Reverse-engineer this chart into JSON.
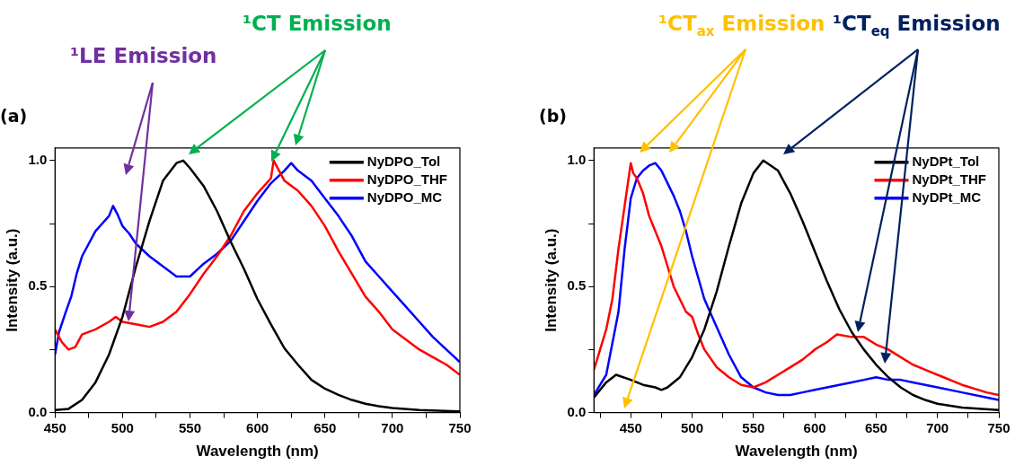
{
  "chart_data": [
    {
      "type": "line",
      "title": "(a)",
      "xlabel": "Wavelength (nm)",
      "ylabel": "Intensity (a.u.)",
      "legend": "top right",
      "marker": "none",
      "line_style": "solid",
      "annotations": [
        "¹LE Emission",
        "¹CT Emission"
      ],
      "xlim": [
        450,
        750
      ],
      "xticks": [
        450,
        {
          "value": 475,
          "label": null
        },
        500,
        {
          "value": 525,
          "label": null
        },
        550,
        {
          "value": 575,
          "label": null
        },
        600,
        {
          "value": 625,
          "label": null
        },
        650,
        {
          "value": 675,
          "label": null
        },
        700,
        {
          "value": 725,
          "label": null
        },
        750
      ],
      "ylim": [
        0,
        1.05
      ],
      "yticks": [
        {
          "value": 0,
          "label": "0.0"
        },
        {
          "value": 0.25,
          "label": null
        },
        {
          "value": 0.5,
          "label": "0.5"
        },
        {
          "value": 0.75,
          "label": null
        },
        {
          "value": 1,
          "label": "1.0"
        }
      ],
      "series": [
        {
          "name": "NyDPO_Tol",
          "color": "#000000",
          "x": [
            450,
            460,
            470,
            480,
            490,
            500,
            510,
            520,
            530,
            540,
            545,
            550,
            560,
            570,
            580,
            590,
            600,
            610,
            620,
            630,
            640,
            650,
            660,
            670,
            680,
            690,
            700,
            720,
            750
          ],
          "values": [
            0.01,
            0.015,
            0.05,
            0.12,
            0.23,
            0.38,
            0.58,
            0.76,
            0.92,
            0.99,
            1.0,
            0.97,
            0.9,
            0.8,
            0.68,
            0.57,
            0.45,
            0.35,
            0.255,
            0.19,
            0.13,
            0.095,
            0.07,
            0.05,
            0.035,
            0.025,
            0.018,
            0.01,
            0.005
          ]
        },
        {
          "name": "NyDPO_THF",
          "color": "#ff0000",
          "x": [
            450,
            455,
            460,
            465,
            470,
            480,
            490,
            495,
            500,
            510,
            520,
            530,
            540,
            550,
            560,
            570,
            580,
            590,
            600,
            610,
            612,
            620,
            630,
            640,
            650,
            660,
            670,
            680,
            690,
            700,
            710,
            720,
            730,
            740,
            750
          ],
          "values": [
            0.33,
            0.28,
            0.25,
            0.26,
            0.31,
            0.33,
            0.36,
            0.38,
            0.36,
            0.35,
            0.34,
            0.36,
            0.4,
            0.47,
            0.55,
            0.62,
            0.7,
            0.8,
            0.87,
            0.93,
            1.0,
            0.92,
            0.88,
            0.82,
            0.74,
            0.64,
            0.55,
            0.46,
            0.4,
            0.33,
            0.29,
            0.25,
            0.22,
            0.19,
            0.15
          ]
        },
        {
          "name": "NyDPO_MC",
          "color": "#0000ff",
          "x": [
            450,
            453,
            458,
            462,
            466,
            470,
            475,
            480,
            485,
            490,
            493,
            496,
            500,
            505,
            510,
            520,
            530,
            540,
            550,
            560,
            570,
            580,
            590,
            600,
            610,
            620,
            625,
            630,
            640,
            650,
            660,
            670,
            680,
            690,
            700,
            710,
            720,
            730,
            740,
            750
          ],
          "values": [
            0.23,
            0.32,
            0.4,
            0.46,
            0.55,
            0.62,
            0.67,
            0.72,
            0.75,
            0.78,
            0.82,
            0.79,
            0.74,
            0.71,
            0.67,
            0.62,
            0.58,
            0.54,
            0.54,
            0.59,
            0.63,
            0.68,
            0.76,
            0.84,
            0.91,
            0.96,
            0.99,
            0.96,
            0.92,
            0.85,
            0.78,
            0.7,
            0.6,
            0.54,
            0.48,
            0.42,
            0.36,
            0.3,
            0.25,
            0.2
          ]
        }
      ]
    },
    {
      "type": "line",
      "title": "(b)",
      "xlabel": "Wavelength (nm)",
      "ylabel": "Intensity (a.u.)",
      "legend": "top right",
      "marker": "none",
      "line_style": "solid",
      "annotations": [
        "¹CT$_{ax}$ Emission",
        "¹CT$_{eq}$ Emission"
      ],
      "xlim": [
        420,
        750
      ],
      "xticks": [
        {
          "value": 425,
          "label": null
        },
        450,
        {
          "value": 475,
          "label": null
        },
        500,
        {
          "value": 525,
          "label": null
        },
        550,
        {
          "value": 575,
          "label": null
        },
        600,
        {
          "value": 625,
          "label": null
        },
        650,
        {
          "value": 675,
          "label": null
        },
        700,
        {
          "value": 725,
          "label": null
        },
        750
      ],
      "ylim": [
        0,
        1.05
      ],
      "yticks": [
        {
          "value": 0,
          "label": "0.0"
        },
        {
          "value": 0.25,
          "label": null
        },
        {
          "value": 0.5,
          "label": "0.5"
        },
        {
          "value": 0.75,
          "label": null
        },
        {
          "value": 1,
          "label": "1.0"
        }
      ],
      "series": [
        {
          "name": "NyDPt_Tol",
          "color": "#000000",
          "x": [
            420,
            430,
            438,
            450,
            460,
            470,
            475,
            480,
            490,
            500,
            510,
            520,
            530,
            540,
            550,
            558,
            570,
            580,
            590,
            600,
            610,
            620,
            630,
            640,
            650,
            660,
            670,
            680,
            690,
            700,
            720,
            750
          ],
          "values": [
            0.06,
            0.12,
            0.15,
            0.13,
            0.11,
            0.1,
            0.09,
            0.1,
            0.14,
            0.22,
            0.33,
            0.48,
            0.66,
            0.83,
            0.95,
            1.0,
            0.96,
            0.87,
            0.76,
            0.64,
            0.52,
            0.41,
            0.32,
            0.25,
            0.19,
            0.14,
            0.1,
            0.07,
            0.05,
            0.035,
            0.02,
            0.01
          ]
        },
        {
          "name": "NyDPt_THF",
          "color": "#ff0000",
          "x": [
            420,
            425,
            430,
            435,
            440,
            445,
            450,
            452,
            455,
            460,
            465,
            470,
            475,
            480,
            485,
            490,
            495,
            500,
            505,
            510,
            520,
            530,
            540,
            550,
            560,
            570,
            580,
            590,
            600,
            610,
            618,
            630,
            640,
            650,
            660,
            670,
            680,
            690,
            700,
            720,
            740,
            750
          ],
          "values": [
            0.17,
            0.25,
            0.33,
            0.45,
            0.65,
            0.82,
            0.99,
            0.95,
            0.93,
            0.87,
            0.78,
            0.72,
            0.66,
            0.58,
            0.5,
            0.45,
            0.4,
            0.38,
            0.31,
            0.25,
            0.18,
            0.14,
            0.11,
            0.1,
            0.12,
            0.15,
            0.18,
            0.21,
            0.25,
            0.28,
            0.31,
            0.3,
            0.3,
            0.27,
            0.25,
            0.22,
            0.19,
            0.17,
            0.15,
            0.11,
            0.08,
            0.07
          ]
        },
        {
          "name": "NyDPt_MC",
          "color": "#0000ff",
          "x": [
            420,
            430,
            440,
            445,
            450,
            455,
            460,
            465,
            470,
            475,
            480,
            485,
            490,
            495,
            500,
            510,
            520,
            530,
            540,
            550,
            560,
            570,
            580,
            590,
            600,
            610,
            620,
            630,
            640,
            650,
            660,
            670,
            680,
            700,
            720,
            740,
            750
          ],
          "values": [
            0.07,
            0.15,
            0.4,
            0.65,
            0.85,
            0.93,
            0.96,
            0.98,
            0.99,
            0.96,
            0.91,
            0.86,
            0.8,
            0.72,
            0.62,
            0.45,
            0.34,
            0.23,
            0.14,
            0.1,
            0.08,
            0.07,
            0.07,
            0.08,
            0.09,
            0.1,
            0.11,
            0.12,
            0.13,
            0.14,
            0.13,
            0.13,
            0.12,
            0.1,
            0.08,
            0.06,
            0.05
          ]
        }
      ]
    }
  ]
}
